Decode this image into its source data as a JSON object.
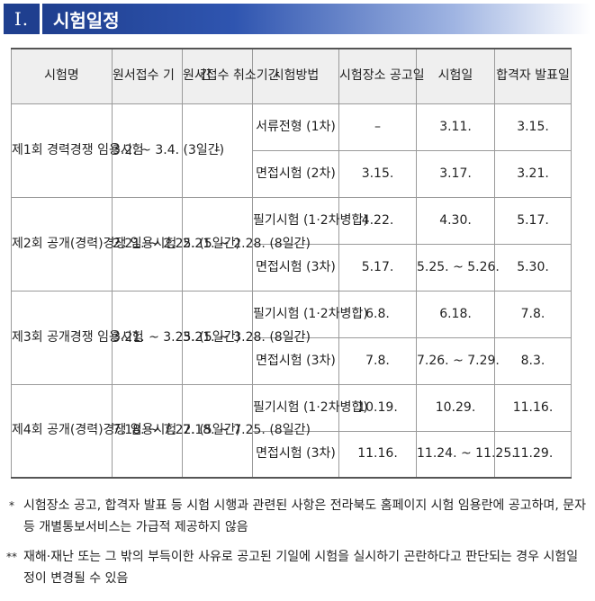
{
  "header": {
    "number": "Ⅰ.",
    "title": "시험일정"
  },
  "table": {
    "columns": [
      "시험명",
      "원서접수\n기　　간",
      "원서접수\n취소기간",
      "시험방법",
      "시험장소\n공고일",
      "시험일",
      "합격자\n발표일"
    ],
    "rounds": [
      {
        "name": "제1회\n경력경쟁\n임용시험",
        "apply": "3.2.\n~ 3.4.\n(3일간)",
        "cancel": "–",
        "stages": [
          {
            "method": "서류전형\n(1차)",
            "notice": "–",
            "exam": "3.11.",
            "result": "3.15."
          },
          {
            "method": "면접시험\n(2차)",
            "notice": "3.15.",
            "exam": "3.17.",
            "result": "3.21."
          }
        ]
      },
      {
        "name": "제2회\n공개(경력)경쟁\n임용시험",
        "apply": "2.21.\n~ 2.25.\n(5일간)",
        "cancel": "2.21.\n~ 2.28.\n(8일간)",
        "stages": [
          {
            "method": "필기시험\n(1·2차병합)",
            "notice": "4.22.",
            "exam": "4.30.",
            "result": "5.17."
          },
          {
            "method": "면접시험\n(3차)",
            "notice": "5.17.",
            "exam": "5.25.\n~ 5.26.",
            "result": "5.30."
          }
        ]
      },
      {
        "name": "제3회\n공개경쟁\n임용시험",
        "apply": "3.21.\n~ 3.25.\n(5일간)",
        "cancel": "3.21.\n~ 3.28.\n(8일간)",
        "stages": [
          {
            "method": "필기시험\n(1·2차병합)",
            "notice": "6.8.",
            "exam": "6.18.",
            "result": "7.8."
          },
          {
            "method": "면접시험\n(3차)",
            "notice": "7.8.",
            "exam": "7.26.\n~ 7.29.",
            "result": "8.3."
          }
        ]
      },
      {
        "name": "제4회\n공개(경력)경쟁\n임용시험",
        "apply": "7.18.\n~ 7.22.\n(5일간)",
        "cancel": "7.18.\n~ 7.25.\n(8일간)",
        "stages": [
          {
            "method": "필기시험\n(1·2차병합)",
            "notice": "10.19.",
            "exam": "10.29.",
            "result": "11.16."
          },
          {
            "method": "면접시험\n(3차)",
            "notice": "11.16.",
            "exam": "11.24.\n~ 11.25.",
            "result": "11.29."
          }
        ]
      }
    ]
  },
  "notes": [
    {
      "mark": "*",
      "text": "시험장소 공고, 합격자 발표 등 시험 시행과 관련된 사항은 전라북도 홈페이지 시험 임용란에 공고하며, 문자 등 개별통보서비스는 가급적 제공하지 않음"
    },
    {
      "mark": "**",
      "text": "재해·재난 또는 그 밖의 부득이한 사유로 공고된 기일에 시험을 실시하기 곤란하다고 판단되는 경우 시험일정이 변경될 수 있음"
    }
  ]
}
